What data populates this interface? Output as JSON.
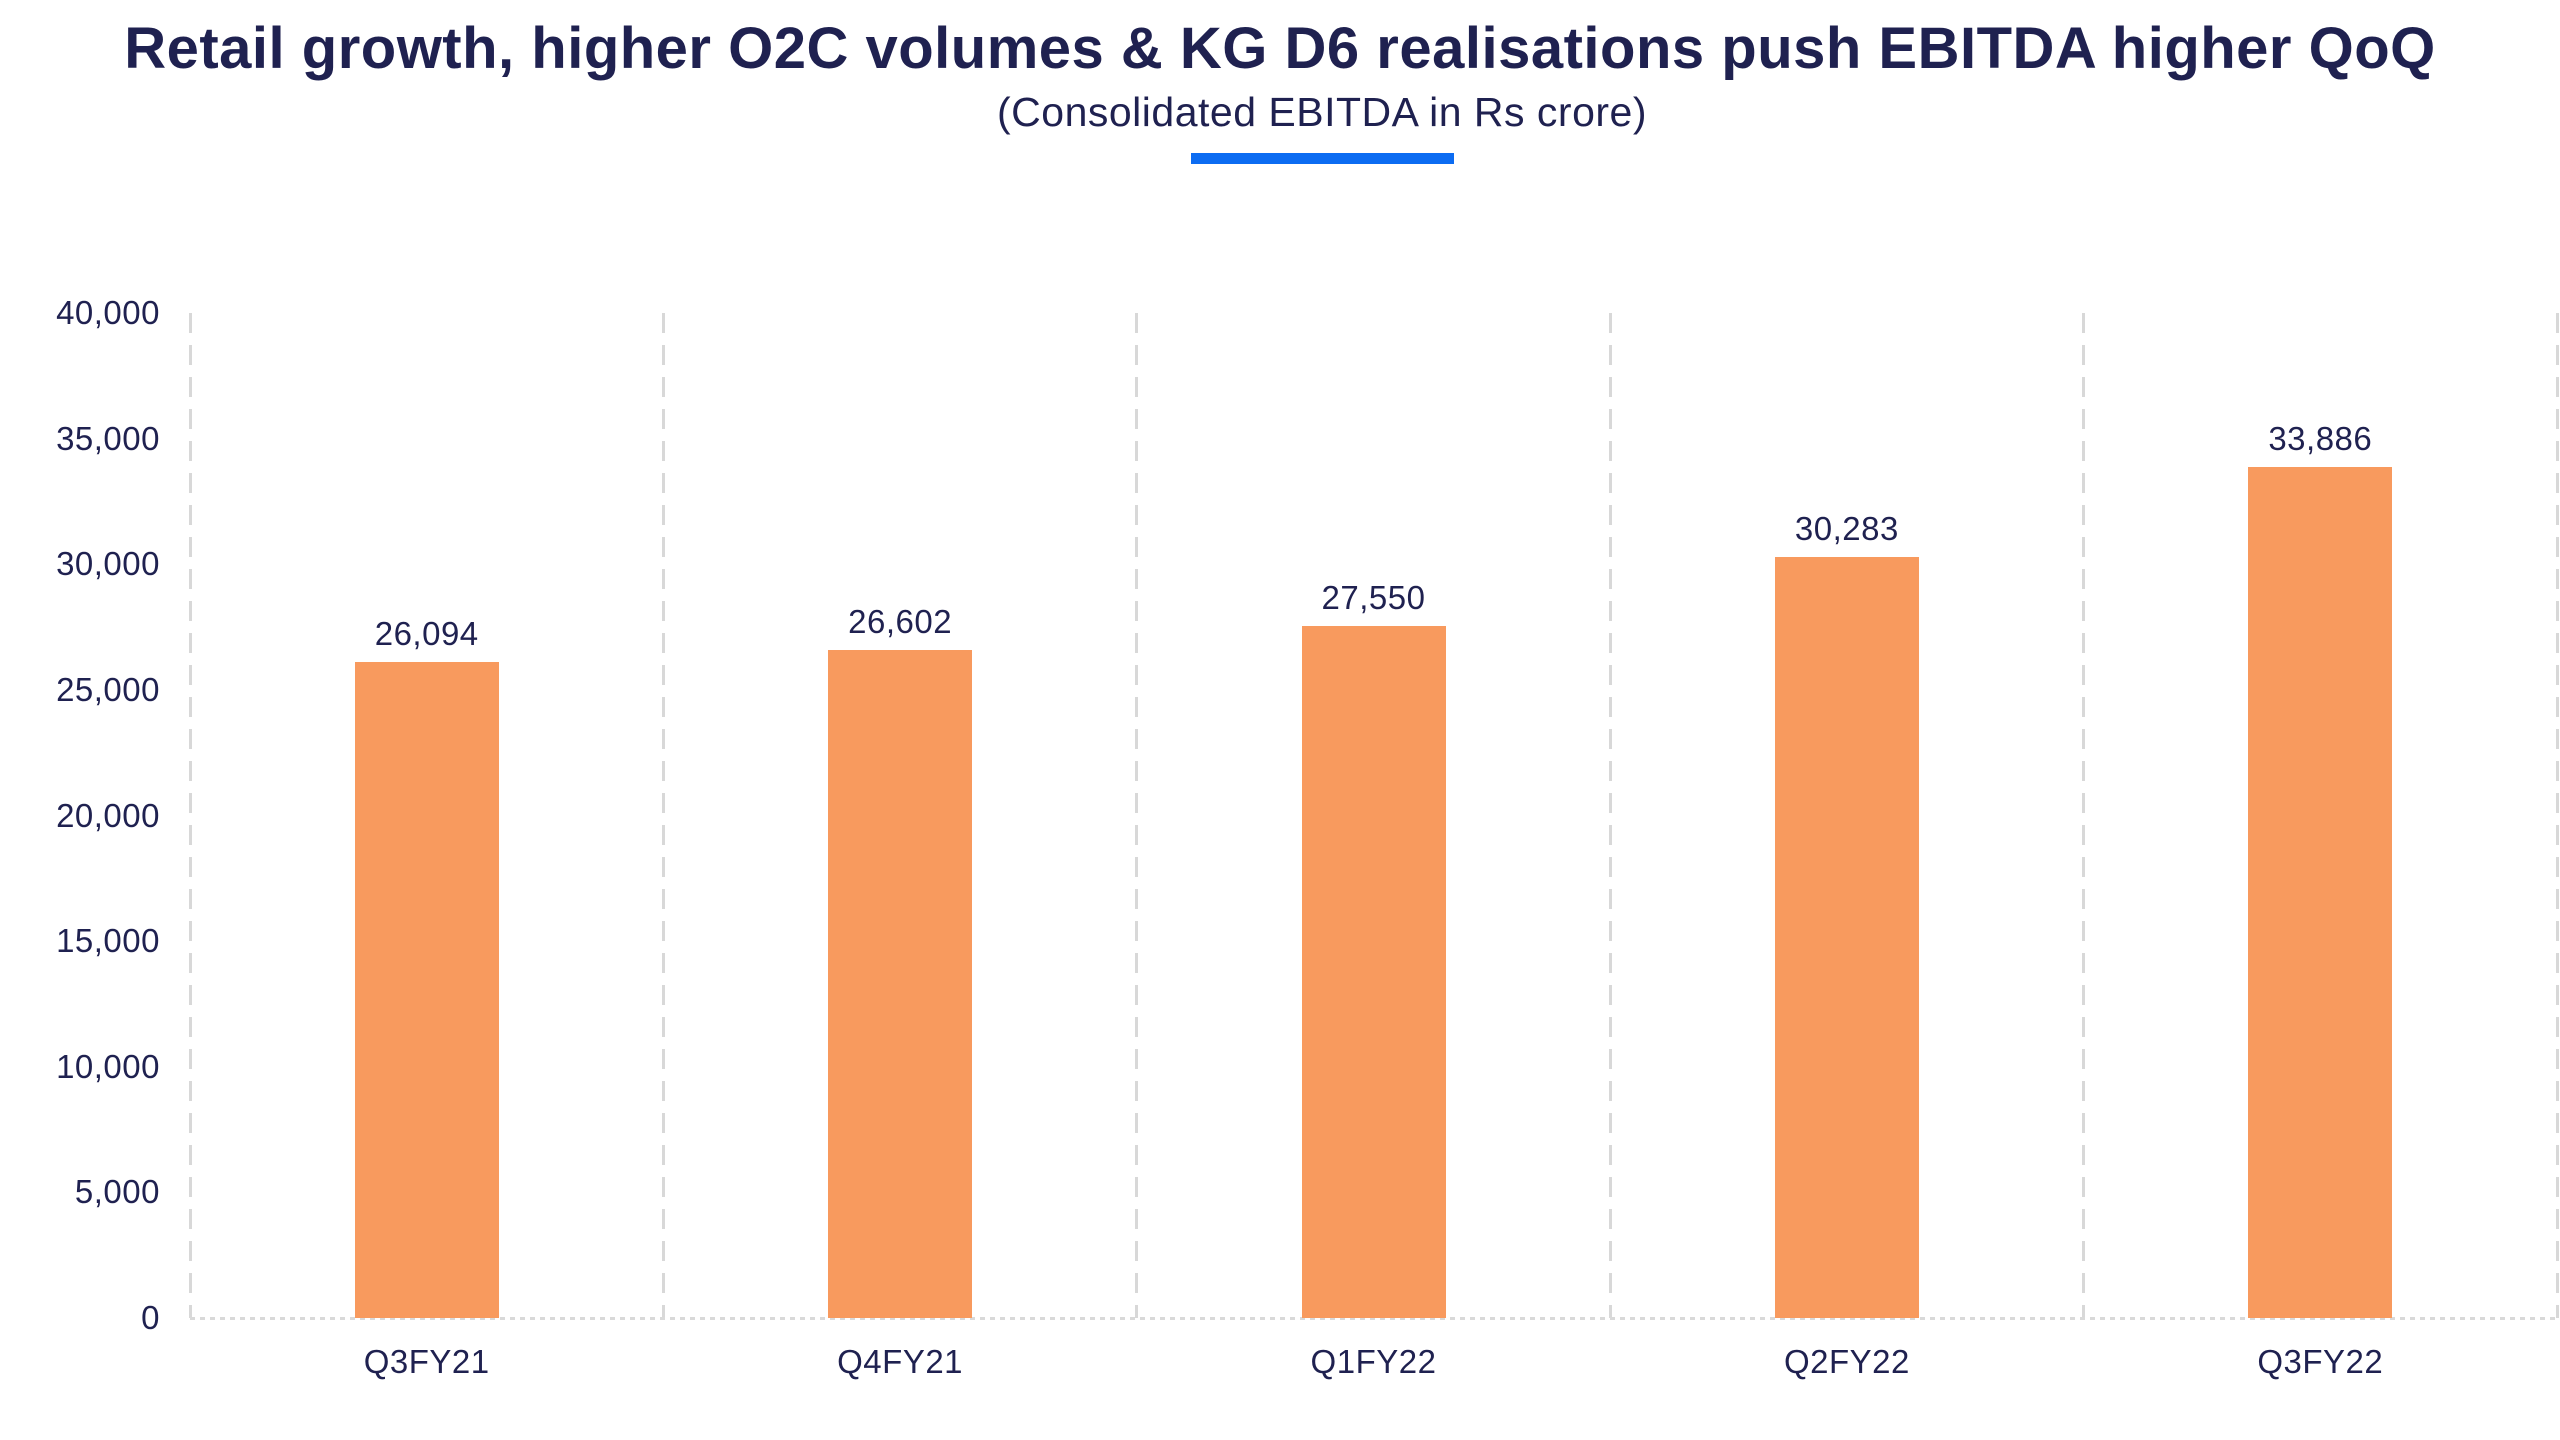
{
  "page": {
    "title": "Retail growth, higher O2C volumes & KG D6 realisations push EBITDA higher QoQ",
    "subtitle": "(Consolidated EBITDA in Rs crore)"
  },
  "colors": {
    "title_text": "#1F2150",
    "bar_fill": "#F89A5E",
    "accent_underline": "#0C6CF2",
    "gridline": "#D8D8D8",
    "axis_line": "#D9D9D9"
  },
  "chart_data": {
    "type": "bar",
    "title": "Retail growth, higher O2C volumes & KG D6 realisations push EBITDA higher QoQ",
    "subtitle": "(Consolidated EBITDA in Rs crore)",
    "categories": [
      "Q3FY21",
      "Q4FY21",
      "Q1FY22",
      "Q2FY22",
      "Q3FY22"
    ],
    "values": [
      26094,
      26602,
      27550,
      30283,
      33886
    ],
    "value_labels": [
      "26,094",
      "26,602",
      "27,550",
      "30,283",
      "33,886"
    ],
    "xlabel": "",
    "ylabel": "",
    "ylim": [
      0,
      40000
    ],
    "ytick_interval": 5000,
    "yticks": [
      {
        "value": 0,
        "label": "0"
      },
      {
        "value": 5000,
        "label": "5,000"
      },
      {
        "value": 10000,
        "label": "10,000"
      },
      {
        "value": 15000,
        "label": "15,000"
      },
      {
        "value": 20000,
        "label": "20,000"
      },
      {
        "value": 25000,
        "label": "25,000"
      },
      {
        "value": 30000,
        "label": "30,000"
      },
      {
        "value": 35000,
        "label": "35,000"
      },
      {
        "value": 40000,
        "label": "40,000"
      }
    ],
    "grid": "vertical-dashed-category-boundaries",
    "legend": "none",
    "bar_color": "#F89A5E"
  }
}
